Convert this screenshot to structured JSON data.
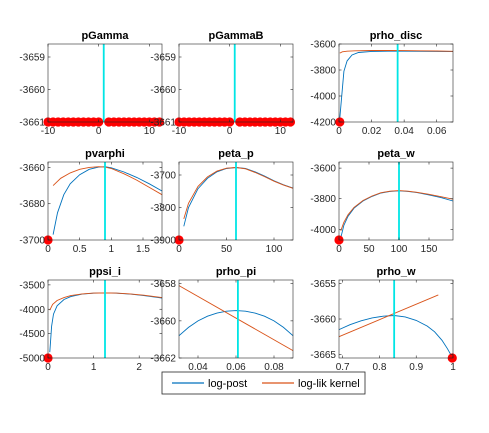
{
  "colors": {
    "post": "#0072BD",
    "lik": "#D95319",
    "mode": "#00E5E5",
    "dot": "#FF0000",
    "axis": "#262626"
  },
  "legend": {
    "post_label": "log-post",
    "lik_label": "log-lik kernel"
  },
  "chart_data": [
    {
      "type": "line",
      "title": "pGamma",
      "xlim": [
        -10,
        12.5
      ],
      "ylim": [
        -3661,
        -3658.6
      ],
      "xticks": [
        -10,
        0,
        10
      ],
      "yticks": [
        -3659,
        -3660,
        -3661
      ],
      "xticklabels": [
        "-10",
        "0",
        "10"
      ],
      "yticklabels": [
        "-3659",
        "-3660",
        "-3661"
      ],
      "mode_x": 1,
      "markers_x": [
        -10,
        -9,
        -8,
        -7,
        -6,
        -5,
        -4,
        -3,
        -2,
        -1,
        0,
        2,
        3,
        4,
        5,
        6,
        7,
        8,
        9,
        10,
        11,
        12
      ],
      "marker_y": -3661,
      "series": []
    },
    {
      "type": "line",
      "title": "pGammaB",
      "xlim": [
        -10,
        12.5
      ],
      "ylim": [
        -3661,
        -3658.6
      ],
      "xticks": [
        -10,
        0,
        10
      ],
      "yticks": [
        -3659,
        -3660,
        -3661
      ],
      "xticklabels": [
        "-10",
        "0",
        "10"
      ],
      "yticklabels": [
        "-3659",
        "-3660",
        "-3661"
      ],
      "mode_x": 1,
      "markers_x": [
        -10,
        -9,
        -8,
        -7,
        -6,
        -5,
        -4,
        -3,
        -2,
        -1,
        0,
        2,
        3,
        4,
        5,
        6,
        7,
        8,
        9,
        10,
        11,
        12
      ],
      "marker_y": -3661,
      "series": []
    },
    {
      "type": "line",
      "title": "prho_disc",
      "xlim": [
        0,
        0.07
      ],
      "ylim": [
        -4200,
        -3600
      ],
      "xticks": [
        0,
        0.02,
        0.04,
        0.06
      ],
      "yticks": [
        -3600,
        -3800,
        -4000,
        -4200
      ],
      "xticklabels": [
        "0",
        "0.02",
        "0.04",
        "0.06"
      ],
      "yticklabels": [
        "-3600",
        "-3800",
        "-4000",
        "-4200"
      ],
      "mode_x": 0.036,
      "markers_x": [
        0.0005
      ],
      "marker_y": -4200,
      "series": [
        {
          "key": "post",
          "x": [
            0.0005,
            0.002,
            0.003,
            0.005,
            0.008,
            0.012,
            0.02,
            0.03,
            0.04,
            0.05,
            0.06,
            0.07
          ],
          "y": [
            -4170,
            -3950,
            -3810,
            -3730,
            -3685,
            -3665,
            -3657,
            -3655,
            -3655,
            -3656,
            -3657,
            -3658
          ]
        },
        {
          "key": "lik",
          "x": [
            0.0005,
            0.002,
            0.005,
            0.01,
            0.02,
            0.03,
            0.04,
            0.05,
            0.06,
            0.07
          ],
          "y": [
            -3670,
            -3660,
            -3655,
            -3652,
            -3650,
            -3650,
            -3651,
            -3652,
            -3654,
            -3656
          ]
        }
      ]
    },
    {
      "type": "line",
      "title": "pvarphi",
      "xlim": [
        0,
        1.8
      ],
      "ylim": [
        -3700,
        -3657
      ],
      "xticks": [
        0,
        0.5,
        1,
        1.5
      ],
      "yticks": [
        -3660,
        -3680,
        -3700
      ],
      "xticklabels": [
        "0",
        "0.5",
        "1",
        "1.5"
      ],
      "yticklabels": [
        "-3660",
        "-3680",
        "-3700"
      ],
      "mode_x": 0.9,
      "markers_x": [
        0
      ],
      "marker_y": -3700,
      "series": [
        {
          "key": "post",
          "x": [
            0.08,
            0.15,
            0.25,
            0.35,
            0.5,
            0.65,
            0.8,
            0.9,
            1.0,
            1.2,
            1.4,
            1.6,
            1.8
          ],
          "y": [
            -3697,
            -3685,
            -3675,
            -3669,
            -3664,
            -3661,
            -3659.8,
            -3659.6,
            -3660.2,
            -3662.5,
            -3665.5,
            -3669,
            -3673
          ]
        },
        {
          "key": "lik",
          "x": [
            0.08,
            0.2,
            0.35,
            0.5,
            0.65,
            0.8,
            0.9,
            1.0,
            1.2,
            1.4,
            1.6,
            1.8
          ],
          "y": [
            -3670,
            -3666,
            -3663,
            -3661,
            -3660,
            -3659.6,
            -3659.8,
            -3660.6,
            -3663.5,
            -3667,
            -3671,
            -3675
          ]
        }
      ]
    },
    {
      "type": "line",
      "title": "peta_p",
      "xlim": [
        0,
        120
      ],
      "ylim": [
        -3900,
        -3660
      ],
      "xticks": [
        0,
        50,
        100
      ],
      "yticks": [
        -3700,
        -3800,
        -3900
      ],
      "xticklabels": [
        "0",
        "50",
        "100"
      ],
      "yticklabels": [
        "-3700",
        "-3800",
        "-3900"
      ],
      "mode_x": 60,
      "markers_x": [
        0
      ],
      "marker_y": -3900,
      "series": [
        {
          "key": "post",
          "x": [
            5,
            10,
            20,
            30,
            40,
            50,
            60,
            70,
            80,
            90,
            100,
            110,
            120
          ],
          "y": [
            -3858,
            -3800,
            -3742,
            -3710,
            -3690,
            -3680,
            -3677,
            -3680,
            -3690,
            -3703,
            -3718,
            -3730,
            -3740
          ]
        },
        {
          "key": "lik",
          "x": [
            5,
            10,
            20,
            30,
            40,
            50,
            60,
            70,
            80,
            90,
            100,
            110,
            120
          ],
          "y": [
            -3835,
            -3787,
            -3735,
            -3706,
            -3688,
            -3679,
            -3677,
            -3681,
            -3692,
            -3705,
            -3719,
            -3731,
            -3741
          ]
        }
      ]
    },
    {
      "type": "line",
      "title": "peta_w",
      "xlim": [
        0,
        190
      ],
      "ylim": [
        -4070,
        -3560
      ],
      "xticks": [
        0,
        50,
        100,
        150
      ],
      "yticks": [
        -3600,
        -3800,
        -4000
      ],
      "xticklabels": [
        "0",
        "50",
        "100",
        "150"
      ],
      "yticklabels": [
        "-3600",
        "-3800",
        "-4000"
      ],
      "mode_x": 100,
      "markers_x": [
        0
      ],
      "marker_y": -4070,
      "series": [
        {
          "key": "post",
          "x": [
            3,
            8,
            15,
            25,
            40,
            55,
            70,
            85,
            100,
            115,
            130,
            150,
            170,
            190
          ],
          "y": [
            -4055,
            -3975,
            -3915,
            -3862,
            -3815,
            -3785,
            -3763,
            -3752,
            -3748,
            -3752,
            -3760,
            -3775,
            -3793,
            -3815
          ]
        },
        {
          "key": "lik",
          "x": [
            3,
            8,
            15,
            25,
            40,
            55,
            70,
            85,
            100,
            115,
            130,
            150,
            170,
            190
          ],
          "y": [
            -4010,
            -3955,
            -3905,
            -3857,
            -3812,
            -3782,
            -3761,
            -3751,
            -3747,
            -3751,
            -3758,
            -3771,
            -3787,
            -3803
          ]
        }
      ]
    },
    {
      "type": "line",
      "title": "ppsi_i",
      "xlim": [
        0,
        2.5
      ],
      "ylim": [
        -5000,
        -3400
      ],
      "xticks": [
        0,
        1,
        2
      ],
      "yticks": [
        -3500,
        -4000,
        -4500,
        -5000
      ],
      "xticklabels": [
        "0",
        "1",
        "2"
      ],
      "yticklabels": [
        "-3500",
        "-4000",
        "-4500",
        "-5000"
      ],
      "mode_x": 1.25,
      "markers_x": [
        0
      ],
      "marker_y": -5000,
      "series": [
        {
          "key": "post",
          "x": [
            0.04,
            0.08,
            0.12,
            0.2,
            0.35,
            0.5,
            0.75,
            1.0,
            1.25,
            1.5,
            1.8,
            2.1,
            2.5
          ],
          "y": [
            -4880,
            -4350,
            -4100,
            -3930,
            -3800,
            -3740,
            -3690,
            -3670,
            -3665,
            -3670,
            -3690,
            -3720,
            -3770
          ]
        },
        {
          "key": "lik",
          "x": [
            0.04,
            0.1,
            0.2,
            0.35,
            0.5,
            0.75,
            1.0,
            1.25,
            1.5,
            1.8,
            2.1,
            2.5
          ],
          "y": [
            -4020,
            -3900,
            -3820,
            -3760,
            -3720,
            -3685,
            -3668,
            -3664,
            -3668,
            -3685,
            -3712,
            -3760
          ]
        }
      ]
    },
    {
      "type": "line",
      "title": "prho_pi",
      "xlim": [
        0.03,
        0.09
      ],
      "ylim": [
        -3662,
        -3657.8
      ],
      "xticks": [
        0.04,
        0.06,
        0.08
      ],
      "yticks": [
        -3658,
        -3660,
        -3662
      ],
      "xticklabels": [
        "0.04",
        "0.06",
        "0.08"
      ],
      "yticklabels": [
        "-3658",
        "-3660",
        "-3662"
      ],
      "mode_x": 0.061,
      "markers_x": [],
      "marker_y": -3662,
      "series": [
        {
          "key": "post",
          "x": [
            0.03,
            0.035,
            0.04,
            0.045,
            0.05,
            0.055,
            0.06,
            0.065,
            0.07,
            0.075,
            0.08,
            0.085,
            0.09
          ],
          "y": [
            -3660.8,
            -3660.35,
            -3660.0,
            -3659.75,
            -3659.58,
            -3659.48,
            -3659.45,
            -3659.48,
            -3659.58,
            -3659.75,
            -3660.0,
            -3660.35,
            -3660.8
          ]
        },
        {
          "key": "lik",
          "x": [
            0.03,
            0.09
          ],
          "y": [
            -3658.1,
            -3661.6
          ]
        }
      ]
    },
    {
      "type": "line",
      "title": "prho_w",
      "xlim": [
        0.69,
        1.0
      ],
      "ylim": [
        -3665.5,
        -3654.5
      ],
      "xticks": [
        0.7,
        0.8,
        0.9,
        1
      ],
      "yticks": [
        -3655,
        -3660,
        -3665
      ],
      "xticklabels": [
        "0.7",
        "0.8",
        "0.9",
        "1"
      ],
      "yticklabels": [
        "-3655",
        "-3660",
        "-3665"
      ],
      "mode_x": 0.84,
      "markers_x": [
        0.998
      ],
      "marker_y": -3665.5,
      "series": [
        {
          "key": "post",
          "x": [
            0.69,
            0.72,
            0.75,
            0.78,
            0.81,
            0.84,
            0.87,
            0.9,
            0.93,
            0.95,
            0.97,
            0.985,
            0.998
          ],
          "y": [
            -3661.5,
            -3660.8,
            -3660.25,
            -3659.85,
            -3659.6,
            -3659.5,
            -3659.7,
            -3660.2,
            -3661.0,
            -3661.8,
            -3663.0,
            -3664.2,
            -3665.4
          ]
        },
        {
          "key": "lik",
          "x": [
            0.69,
            0.96
          ],
          "y": [
            -3662.5,
            -3656.6
          ]
        }
      ]
    }
  ]
}
